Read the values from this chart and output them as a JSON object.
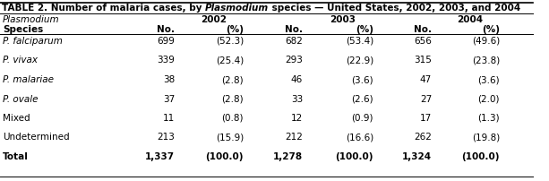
{
  "title_parts": [
    {
      "text": "TABLE 2. Number of malaria cases, by ",
      "bold": true,
      "italic": false
    },
    {
      "text": "Plasmodium",
      "bold": true,
      "italic": true
    },
    {
      "text": " species — United States, 2002, 2003, and 2004",
      "bold": true,
      "italic": false
    }
  ],
  "header1": [
    "Plasmodium",
    "2002",
    "2003",
    "2004"
  ],
  "header1_italic": [
    true,
    false,
    false,
    false
  ],
  "header1_bold": [
    false,
    true,
    true,
    true
  ],
  "header2": [
    "Species",
    "No.",
    "(%)",
    "No.",
    "(%)",
    "No.",
    "(%)"
  ],
  "header2_bold": [
    true,
    true,
    true,
    true,
    true,
    true,
    true
  ],
  "species": [
    "P. falciparum",
    "P. vivax",
    "P. malariae",
    "P. ovale",
    "Mixed",
    "Undetermined",
    "Total"
  ],
  "species_italic": [
    true,
    true,
    true,
    true,
    false,
    false,
    false
  ],
  "species_bold": [
    false,
    false,
    false,
    false,
    false,
    false,
    true
  ],
  "data": [
    [
      "699",
      "(52.3)",
      "682",
      "(53.4)",
      "656",
      "(49.6)"
    ],
    [
      "339",
      "(25.4)",
      "293",
      "(22.9)",
      "315",
      "(23.8)"
    ],
    [
      "38",
      "(2.8)",
      "46",
      "(3.6)",
      "47",
      "(3.6)"
    ],
    [
      "37",
      "(2.8)",
      "33",
      "(2.6)",
      "27",
      "(2.0)"
    ],
    [
      "11",
      "(0.8)",
      "12",
      "(0.9)",
      "17",
      "(1.3)"
    ],
    [
      "213",
      "(15.9)",
      "212",
      "(16.6)",
      "262",
      "(19.8)"
    ],
    [
      "1,337",
      "(100.0)",
      "1,278",
      "(100.0)",
      "1,324",
      "(100.0)"
    ]
  ],
  "data_bold": [
    false,
    false,
    false,
    false,
    false,
    false,
    true
  ],
  "bg_color": "#ffffff",
  "text_color": "#000000",
  "font_size": 7.5,
  "title_font_size": 7.5,
  "fig_width": 6.13,
  "fig_height": 2.02,
  "dpi": 100
}
